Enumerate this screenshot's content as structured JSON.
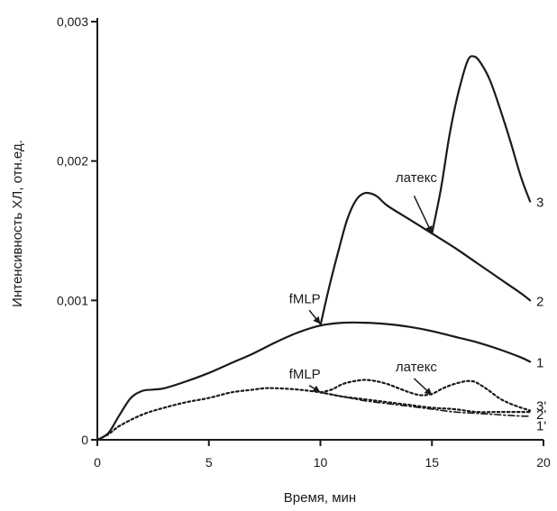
{
  "chart_data": {
    "type": "line",
    "xlabel": "Время, мин",
    "ylabel": "Интенсивность ХЛ, отн.ед.",
    "xlim": [
      0,
      20
    ],
    "ylim": [
      0,
      0.003
    ],
    "x_ticks": [
      0,
      5,
      10,
      15,
      20
    ],
    "x_tick_labels": [
      "0",
      "5",
      "10",
      "15",
      "20"
    ],
    "y_ticks": [
      0,
      0.001,
      0.002,
      0.003
    ],
    "y_tick_labels": [
      "0",
      "0,001",
      "0,002",
      "0,003"
    ],
    "grid": false,
    "series": [
      {
        "name": "1",
        "style": "solid",
        "x": [
          0,
          0.5,
          1,
          1.5,
          2,
          2.5,
          3,
          4,
          5,
          6,
          7,
          8,
          9,
          10,
          11,
          12,
          13,
          14,
          15,
          16,
          17,
          18,
          19,
          19.4
        ],
        "y": [
          0,
          5e-05,
          0.00018,
          0.0003,
          0.00035,
          0.00036,
          0.00037,
          0.00042,
          0.00048,
          0.00055,
          0.00062,
          0.0007,
          0.00077,
          0.00082,
          0.00084,
          0.00084,
          0.00083,
          0.00081,
          0.00078,
          0.00074,
          0.0007,
          0.00065,
          0.00059,
          0.00056
        ]
      },
      {
        "name": "2",
        "style": "solid",
        "x": [
          10,
          10.4,
          10.8,
          11.2,
          11.6,
          12,
          12.5,
          13,
          14,
          15,
          16,
          17,
          18,
          19,
          19.4
        ],
        "y": [
          0.00082,
          0.0011,
          0.00135,
          0.00158,
          0.00172,
          0.00177,
          0.00175,
          0.00168,
          0.00158,
          0.00148,
          0.00138,
          0.00127,
          0.00116,
          0.00105,
          0.001
        ]
      },
      {
        "name": "3",
        "style": "solid",
        "x": [
          15,
          15.4,
          15.8,
          16.2,
          16.6,
          16.9,
          17.2,
          17.6,
          18,
          18.5,
          19,
          19.4
        ],
        "y": [
          0.00148,
          0.0018,
          0.0022,
          0.0025,
          0.00272,
          0.00275,
          0.0027,
          0.00258,
          0.0024,
          0.00215,
          0.00188,
          0.00171
        ]
      },
      {
        "name": "1'",
        "style": "dashdot",
        "x": [
          10,
          11,
          12,
          13,
          14,
          15,
          16,
          17,
          18,
          19,
          19.4
        ],
        "y": [
          0.00034,
          0.00031,
          0.00028,
          0.00026,
          0.00024,
          0.00022,
          0.0002,
          0.00019,
          0.00018,
          0.00017,
          0.00017
        ]
      },
      {
        "name": "2'",
        "style": "dotted",
        "x": [
          0,
          0.5,
          1,
          2,
          3,
          4,
          5,
          6,
          7,
          7.5,
          8,
          9,
          10,
          11,
          12,
          13,
          14,
          15,
          16,
          17,
          18,
          19,
          19.4
        ],
        "y": [
          0,
          4e-05,
          0.0001,
          0.00018,
          0.00023,
          0.00027,
          0.0003,
          0.00034,
          0.00036,
          0.00037,
          0.00037,
          0.00036,
          0.00034,
          0.00031,
          0.00029,
          0.00027,
          0.00025,
          0.00023,
          0.00022,
          0.0002,
          0.0002,
          0.0002,
          0.0002
        ]
      },
      {
        "name": "3'",
        "style": "dotted",
        "x": [
          10,
          10.5,
          11,
          11.5,
          12,
          12.5,
          13,
          13.5,
          14,
          14.5,
          15,
          15.5,
          16,
          16.5,
          16.8,
          17,
          17.5,
          18,
          18.5,
          19,
          19.4
        ],
        "y": [
          0.00034,
          0.00036,
          0.0004,
          0.00042,
          0.00043,
          0.00042,
          0.0004,
          0.00037,
          0.00034,
          0.00032,
          0.00033,
          0.00037,
          0.0004,
          0.00042,
          0.00042,
          0.00041,
          0.00036,
          0.0003,
          0.00026,
          0.00023,
          0.00021
        ]
      }
    ],
    "annotations": [
      {
        "text": "fMLP",
        "x": 9.3,
        "y": 0.00098
      },
      {
        "text": "латекс",
        "x": 14.3,
        "y": 0.00185
      },
      {
        "text": "fMLP",
        "x": 9.3,
        "y": 0.00044
      },
      {
        "text": "латекс",
        "x": 14.3,
        "y": 0.00049
      }
    ],
    "arrows": [
      {
        "from": [
          9.5,
          0.00093
        ],
        "to": [
          10,
          0.00083
        ]
      },
      {
        "from": [
          14.2,
          0.00175
        ],
        "to": [
          15,
          0.00148
        ]
      },
      {
        "from": [
          9.5,
          0.00039
        ],
        "to": [
          10,
          0.00034
        ]
      },
      {
        "from": [
          14.2,
          0.00044
        ],
        "to": [
          15,
          0.00032
        ]
      }
    ]
  }
}
